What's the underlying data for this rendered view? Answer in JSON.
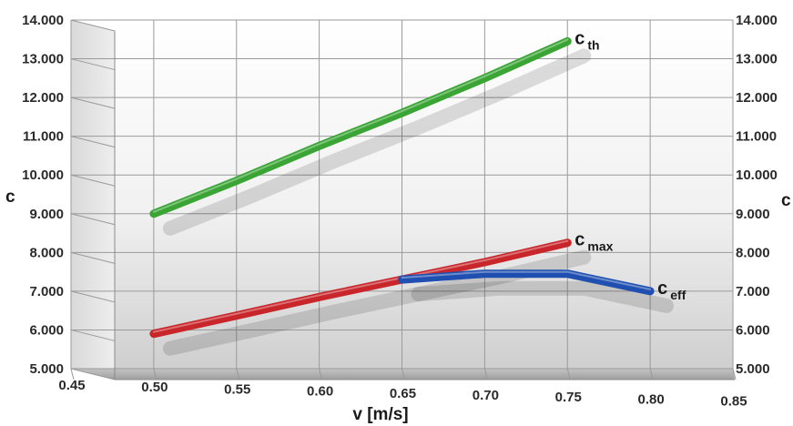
{
  "chart_data": {
    "type": "line",
    "xlabel": "v [m/s]",
    "ylabel_left": "c",
    "ylabel_right": "c",
    "xlim": [
      0.45,
      0.85
    ],
    "ylim": [
      5000,
      14000
    ],
    "x_ticks": [
      "0.45",
      "0.50",
      "0.55",
      "0.60",
      "0.65",
      "0.70",
      "0.75",
      "0.80",
      "0.85"
    ],
    "y_ticks": [
      "5.000",
      "6.000",
      "7.000",
      "8.000",
      "9.000",
      "10.000",
      "11.000",
      "12.000",
      "13.000",
      "14.000"
    ],
    "grid": true,
    "series": [
      {
        "label_main": "c",
        "label_sub": "th",
        "color": "#3aa535",
        "points": [
          [
            0.5,
            9000
          ],
          [
            0.55,
            9850
          ],
          [
            0.6,
            10750
          ],
          [
            0.65,
            11600
          ],
          [
            0.7,
            12500
          ],
          [
            0.75,
            13450
          ]
        ]
      },
      {
        "label_main": "c",
        "label_sub": "max",
        "color": "#c8262b",
        "points": [
          [
            0.5,
            5900
          ],
          [
            0.55,
            6370
          ],
          [
            0.6,
            6850
          ],
          [
            0.65,
            7300
          ],
          [
            0.7,
            7750
          ],
          [
            0.75,
            8250
          ]
        ]
      },
      {
        "label_main": "c",
        "label_sub": "eff",
        "color": "#1f4fb0",
        "points": [
          [
            0.65,
            7300
          ],
          [
            0.7,
            7450
          ],
          [
            0.75,
            7450
          ],
          [
            0.8,
            7000
          ]
        ]
      }
    ]
  }
}
